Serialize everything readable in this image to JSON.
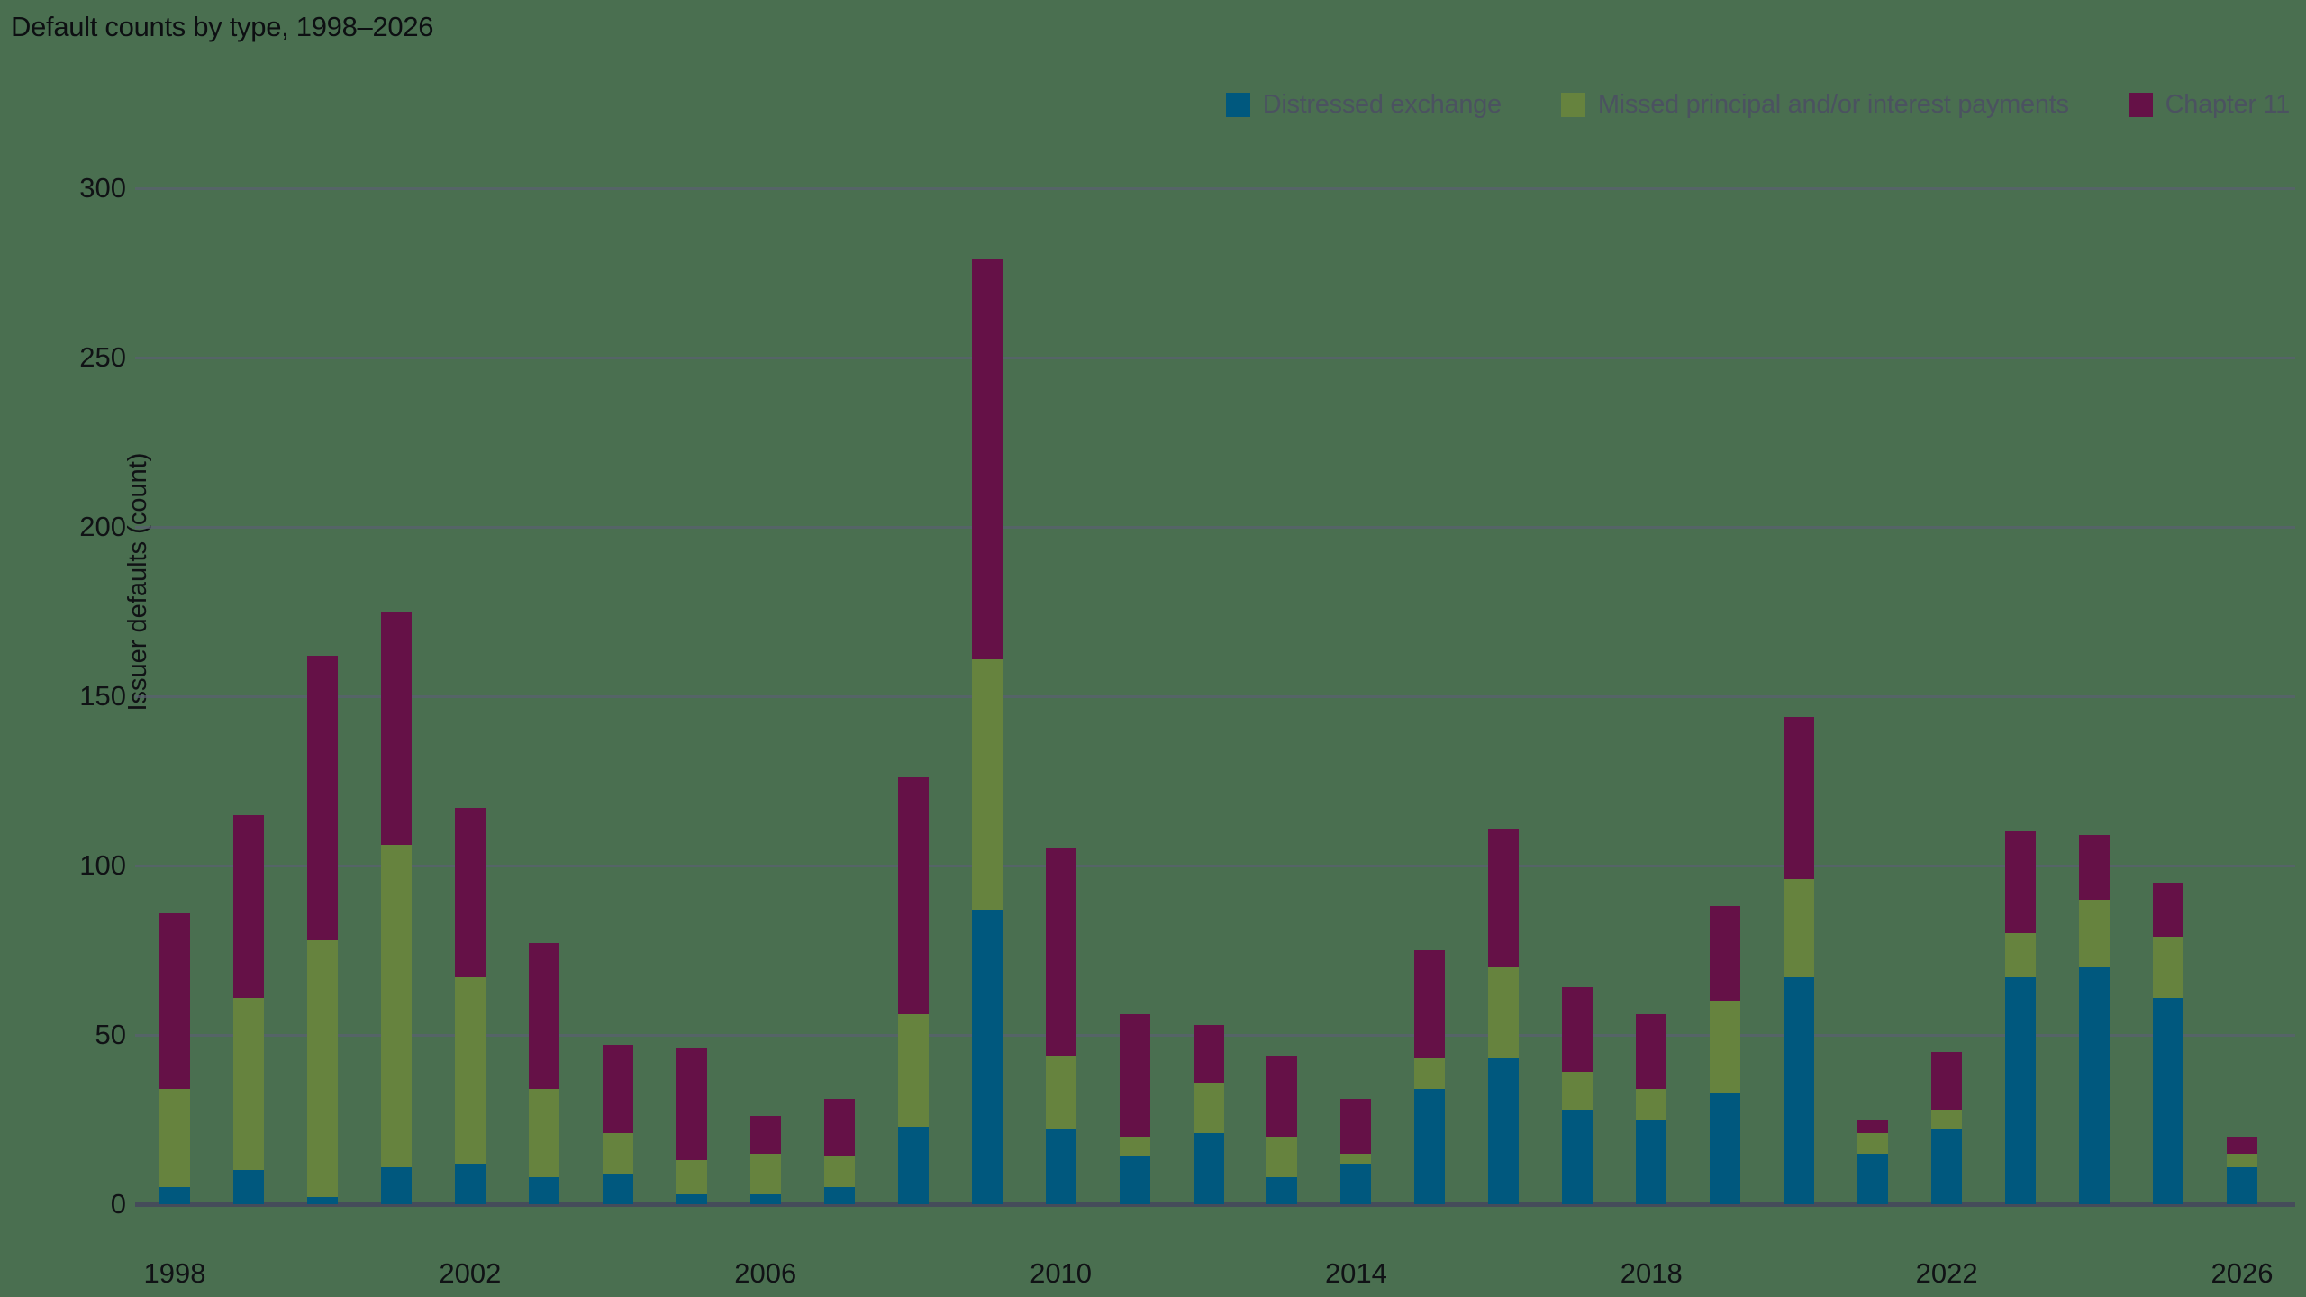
{
  "title": "Default counts by type, 1998–2026",
  "colors": {
    "background": "#4a6f50",
    "gridline": "#59606f",
    "axis_line": "#454c5a",
    "title_text": "#0d0f12",
    "tick_text": "#101215",
    "legend_text": "#4b5260"
  },
  "layout_note_values_are_visible_pixels_only": true,
  "chart_data": {
    "type": "bar",
    "stacked": true,
    "title": "Default counts by type, 1998–2026",
    "ylabel": "Issuer defaults (count)",
    "xlabel": "",
    "ylim": [
      0,
      300
    ],
    "yticks": [
      0,
      50,
      100,
      150,
      200,
      250,
      300
    ],
    "xtick_labels": [
      "1998",
      "2002",
      "2006",
      "2010",
      "2014",
      "2018",
      "2022",
      "2026"
    ],
    "grid": "horizontal",
    "legend_position": "top-right",
    "categories": [
      1998,
      1999,
      2000,
      2001,
      2002,
      2003,
      2004,
      2005,
      2006,
      2007,
      2008,
      2009,
      2010,
      2011,
      2012,
      2013,
      2014,
      2015,
      2016,
      2017,
      2018,
      2019,
      2020,
      2021,
      2022,
      2023,
      2024,
      2025,
      2026
    ],
    "series": [
      {
        "name": "Distressed exchange",
        "color": "#00587e",
        "values": [
          5,
          10,
          2,
          11,
          12,
          8,
          9,
          3,
          3,
          5,
          23,
          87,
          22,
          14,
          21,
          8,
          12,
          34,
          43,
          28,
          25,
          33,
          67,
          15,
          22,
          67,
          70,
          61,
          11
        ]
      },
      {
        "name": "Missed principal and/or interest payments",
        "color": "#66833e",
        "values": [
          29,
          51,
          76,
          95,
          55,
          26,
          12,
          10,
          12,
          9,
          33,
          74,
          22,
          6,
          15,
          12,
          3,
          9,
          27,
          11,
          9,
          27,
          29,
          6,
          6,
          13,
          20,
          18,
          4
        ]
      },
      {
        "name": "Chapter 11",
        "color": "#651147",
        "values": [
          52,
          54,
          84,
          69,
          50,
          43,
          26,
          33,
          11,
          17,
          70,
          118,
          61,
          36,
          17,
          24,
          16,
          32,
          41,
          25,
          22,
          28,
          48,
          4,
          17,
          30,
          19,
          16,
          5
        ]
      }
    ],
    "totals": [
      86,
      115,
      162,
      175,
      117,
      77,
      47,
      46,
      26,
      31,
      126,
      279,
      105,
      56,
      53,
      44,
      31,
      75,
      111,
      64,
      56,
      88,
      144,
      25,
      45,
      110,
      109,
      95,
      20
    ]
  }
}
